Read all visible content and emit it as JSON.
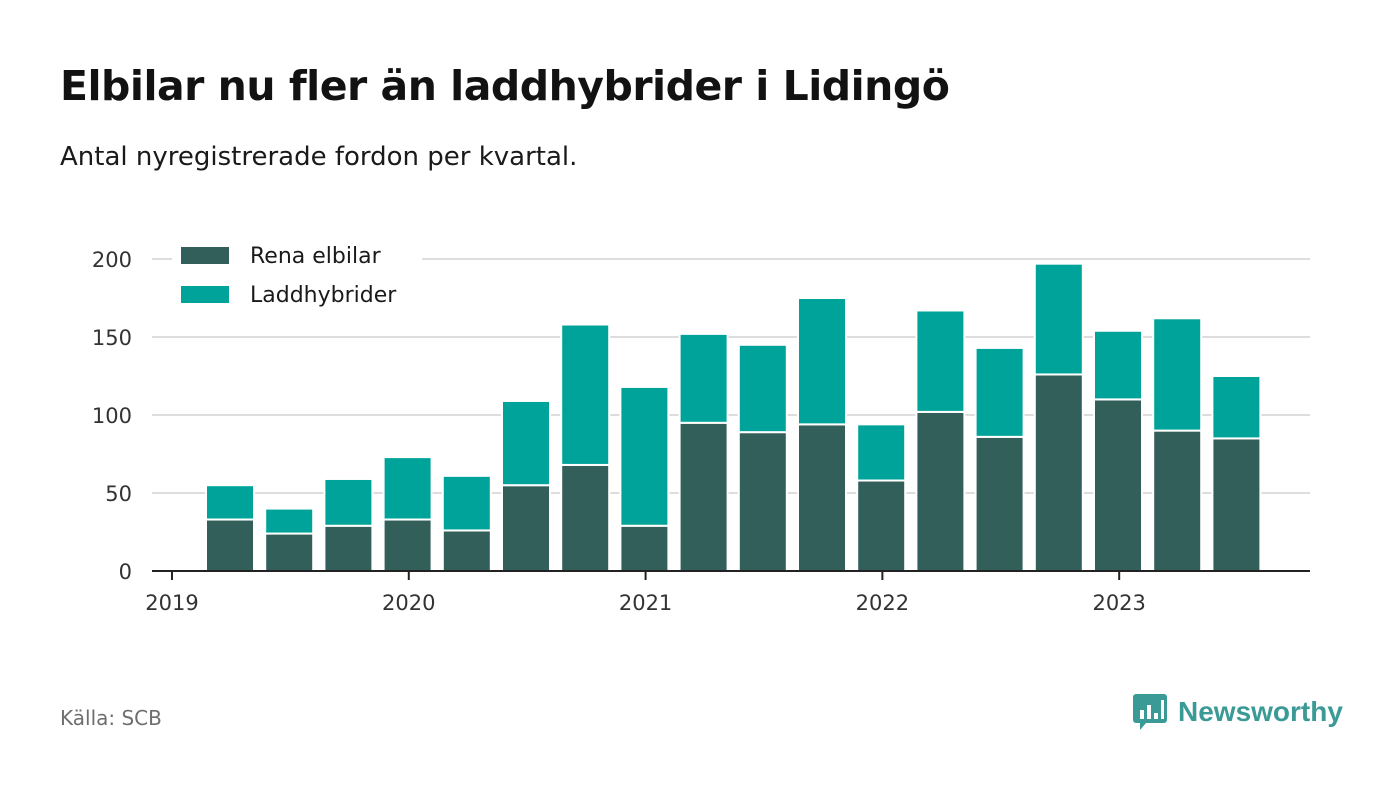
{
  "title": "Elbilar nu fler än laddhybrider i Lidingö",
  "subtitle": "Antal nyregistrerade fordon per kvartal.",
  "source": "Källa: SCB",
  "brand": "Newsworthy",
  "colors": {
    "elbilar": "#335f5a",
    "laddhybrider": "#00a39a",
    "grid": "#dddddd",
    "axis": "#222222",
    "brand": "#3a9a96"
  },
  "chart_data": {
    "type": "bar",
    "stacked": true,
    "title": "Elbilar nu fler än laddhybrider i Lidingö",
    "subtitle": "Antal nyregistrerade fordon per kvartal.",
    "categories": [
      "2019 Q2",
      "2019 Q3",
      "2019 Q4",
      "2020 Q1",
      "2020 Q2",
      "2020 Q3",
      "2020 Q4",
      "2021 Q1",
      "2021 Q2",
      "2021 Q3",
      "2021 Q4",
      "2022 Q1",
      "2022 Q2",
      "2022 Q3",
      "2022 Q4",
      "2023 Q1",
      "2023 Q2",
      "2023 Q3"
    ],
    "series": [
      {
        "name": "Rena elbilar",
        "values": [
          33,
          24,
          29,
          33,
          26,
          55,
          68,
          29,
          95,
          89,
          94,
          58,
          102,
          86,
          126,
          110,
          90,
          85
        ]
      },
      {
        "name": "Laddhybrider",
        "values": [
          22,
          16,
          30,
          40,
          35,
          54,
          90,
          89,
          57,
          56,
          81,
          36,
          65,
          57,
          71,
          44,
          72,
          40
        ]
      }
    ],
    "x_ticks": [
      "2019",
      "2020",
      "2021",
      "2022",
      "2023"
    ],
    "y_ticks": [
      0,
      50,
      100,
      150,
      200
    ],
    "ylim": [
      0,
      200
    ],
    "xlabel": "",
    "ylabel": "",
    "legend_position": "top-left",
    "grid": true
  }
}
